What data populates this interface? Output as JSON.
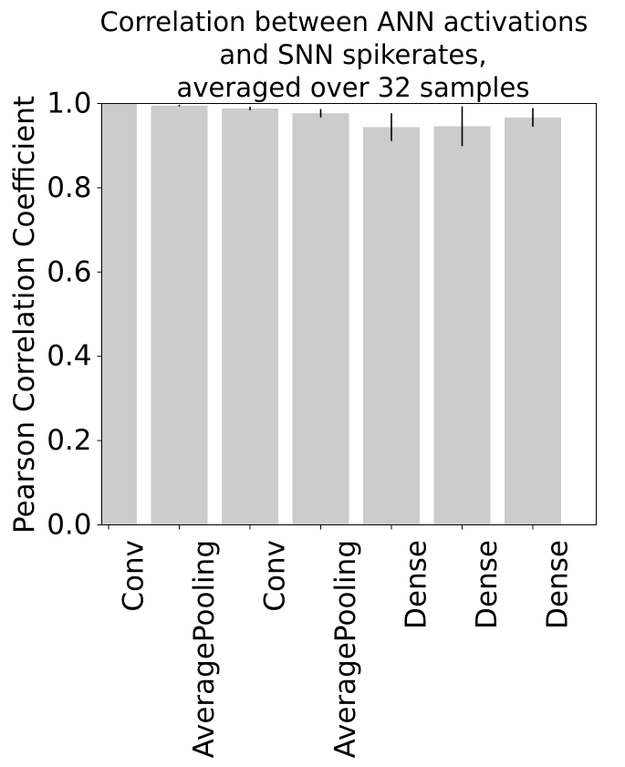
{
  "chart_data": {
    "type": "bar",
    "title_lines": [
      "Correlation between ANN activations",
      "and SNN spikerates,",
      "averaged over 32 samples"
    ],
    "xlabel": "",
    "ylabel": "Pearson Correlation Coefficient",
    "categories": [
      "Conv",
      "AveragePooling",
      "Conv",
      "AveragePooling",
      "Dense",
      "Dense",
      "Dense"
    ],
    "values": [
      1.0,
      0.995,
      0.988,
      0.977,
      0.944,
      0.946,
      0.967
    ],
    "errors": [
      0.001,
      0.002,
      0.004,
      0.01,
      0.033,
      0.047,
      0.022
    ],
    "ylim": [
      0,
      1.0
    ],
    "yticks": [
      "0.0",
      "0.2",
      "0.4",
      "0.6",
      "0.8",
      "1.0"
    ],
    "bar_color": "#cccccc",
    "error_color": "#000000",
    "grid": false,
    "legend": "none"
  }
}
